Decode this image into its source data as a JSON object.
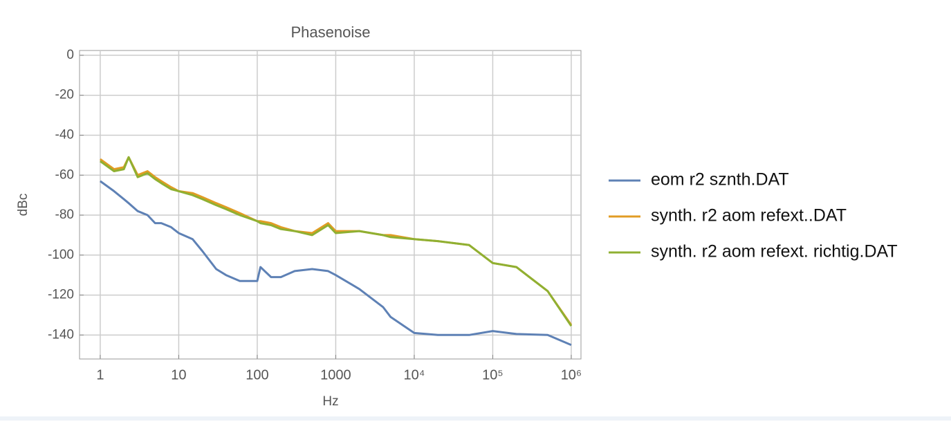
{
  "chart_data": {
    "type": "line",
    "title": "Phasenoise",
    "x_label": "Hz",
    "y_label": "dBc",
    "x_scale": "log",
    "grid": true,
    "legend": "right",
    "xlim": [
      0.545,
      1330000
    ],
    "ylim": [
      -152,
      2.4
    ],
    "xticks": [
      1,
      10,
      100,
      1000,
      {
        "value": 10000,
        "label": "10⁴"
      },
      {
        "value": 100000,
        "label": "10⁵"
      },
      {
        "value": 1000000,
        "label": "10⁶"
      }
    ],
    "yticks": [
      0,
      -20,
      -40,
      -60,
      -80,
      -100,
      -120,
      -140
    ],
    "x": [
      1,
      1.5,
      2,
      2.3,
      3,
      4,
      5,
      6,
      8,
      10,
      15,
      20,
      30,
      40,
      60,
      100,
      110,
      150,
      200,
      300,
      500,
      800,
      1000,
      2000,
      4000,
      5000,
      10000,
      20000,
      50000,
      100000,
      200000,
      500000,
      1000000
    ],
    "series": [
      {
        "name": "eom r2 sznth.DAT",
        "color": "#5e81b5",
        "values": [
          -63,
          -68,
          -72,
          -74,
          -78,
          -80,
          -84,
          -84,
          -86,
          -89,
          -92,
          -98,
          -107,
          -110,
          -113,
          -113,
          -106,
          -111,
          -111,
          -108,
          -107,
          -108,
          -110,
          -117,
          -126,
          -131,
          -139,
          -140,
          -140,
          -138,
          -139.5,
          -140,
          -145
        ]
      },
      {
        "name": "synth. r2 aom refext..DAT",
        "color": "#e19c24",
        "values": [
          -52,
          -57,
          -56,
          -51,
          -60,
          -58,
          -61,
          -63,
          -66,
          -68,
          -69,
          -71,
          -74,
          -76,
          -79,
          -83,
          -83,
          -84,
          -86,
          -88,
          -89,
          -84,
          -88,
          -88,
          -90,
          -90,
          -92,
          -93,
          -95,
          -104,
          -106,
          -118,
          -135
        ]
      },
      {
        "name": "synth. r2 aom refext. richtig.DAT",
        "color": "#8fb032",
        "values": [
          -53,
          -58,
          -57,
          -51,
          -61,
          -59,
          -62,
          -64,
          -67,
          -68,
          -70,
          -72,
          -75,
          -77,
          -80,
          -83,
          -84,
          -85,
          -87,
          -88,
          -90,
          -85,
          -89,
          -88,
          -90,
          -91,
          -92,
          -93,
          -95,
          -104,
          -106,
          -118,
          -135.5
        ]
      }
    ]
  }
}
